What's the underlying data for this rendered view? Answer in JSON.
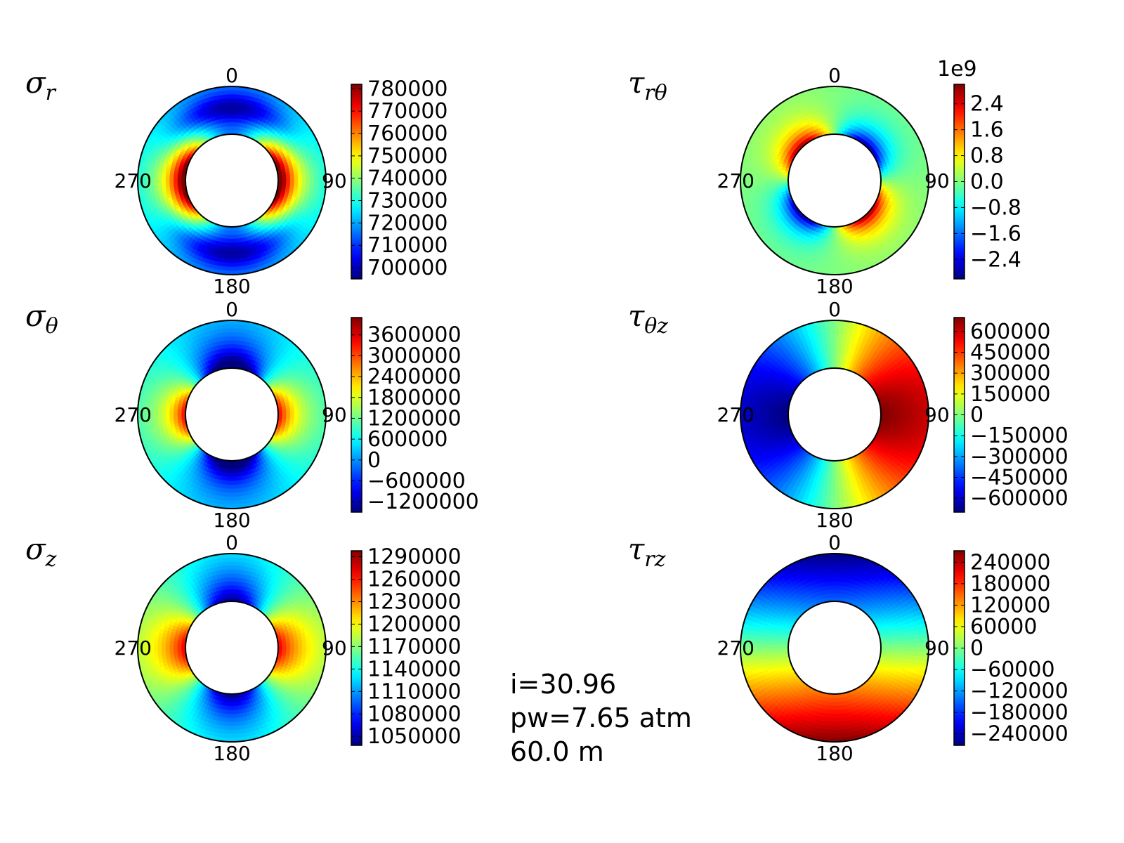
{
  "chart_data": [
    {
      "type": "heatmap",
      "symbol": "σ",
      "subscript": "r",
      "angle_labels": [
        "0",
        "90",
        "180",
        "270"
      ],
      "colorbar": {
        "ticks": [
          "780000",
          "770000",
          "760000",
          "750000",
          "740000",
          "730000",
          "720000",
          "710000",
          "700000"
        ],
        "min": 695000,
        "max": 782000,
        "offset_text": ""
      },
      "field": {
        "mean": 728000,
        "ring_min": 700000,
        "ring_max": 780000,
        "description_pattern": "max at 90 and 270 near inner wall, min at 0 and 180 mid-wall"
      }
    },
    {
      "type": "heatmap",
      "symbol": "τ",
      "subscript": "rθ",
      "angle_labels": [
        "0",
        "90",
        "180",
        "270"
      ],
      "colorbar": {
        "ticks": [
          "2.4",
          "1.6",
          "0.8",
          "0.0",
          "−0.8",
          "−1.6",
          "−2.4"
        ],
        "min": -3.0,
        "max": 3.0,
        "offset_text": "1e9"
      },
      "field": {
        "mean": 0,
        "ring_min": -3.0,
        "ring_max": 3.0
      }
    },
    {
      "type": "heatmap",
      "symbol": "σ",
      "subscript": "θ",
      "angle_labels": [
        "0",
        "90",
        "180",
        "270"
      ],
      "colorbar": {
        "ticks": [
          "3600000",
          "3000000",
          "2400000",
          "1800000",
          "1200000",
          "600000",
          "0",
          "−600000",
          "−1200000"
        ],
        "min": -1500000,
        "max": 4100000,
        "offset_text": ""
      },
      "field": {
        "mean": 1300000,
        "ring_min": -1400000,
        "ring_max": 4000000
      }
    },
    {
      "type": "heatmap",
      "symbol": "τ",
      "subscript": "θz",
      "angle_labels": [
        "0",
        "90",
        "180",
        "270"
      ],
      "colorbar": {
        "ticks": [
          "600000",
          "450000",
          "300000",
          "150000",
          "0",
          "−150000",
          "−300000",
          "−450000",
          "−600000"
        ],
        "min": -700000,
        "max": 700000,
        "offset_text": ""
      },
      "field": {
        "mean": 0,
        "ring_min": -700000,
        "ring_max": 700000
      }
    },
    {
      "type": "heatmap",
      "symbol": "σ",
      "subscript": "z",
      "angle_labels": [
        "0",
        "90",
        "180",
        "270"
      ],
      "colorbar": {
        "ticks": [
          "1290000",
          "1260000",
          "1230000",
          "1200000",
          "1170000",
          "1140000",
          "1110000",
          "1080000",
          "1050000"
        ],
        "min": 1038000,
        "max": 1298000,
        "offset_text": ""
      },
      "field": {
        "mean": 1160000,
        "ring_min": 1040000,
        "ring_max": 1290000
      }
    },
    {
      "type": "heatmap",
      "symbol": "τ",
      "subscript": "rz",
      "angle_labels": [
        "0",
        "90",
        "180",
        "270"
      ],
      "colorbar": {
        "ticks": [
          "240000",
          "180000",
          "120000",
          "60000",
          "0",
          "−60000",
          "−120000",
          "−180000",
          "−240000"
        ],
        "min": -272000,
        "max": 272000,
        "offset_text": ""
      },
      "field": {
        "mean": 0,
        "ring_min": -272000,
        "ring_max": 272000
      }
    }
  ],
  "info": {
    "line1": "i=30.96",
    "line2": "pw=7.65 atm",
    "line3": "60.0 m"
  }
}
